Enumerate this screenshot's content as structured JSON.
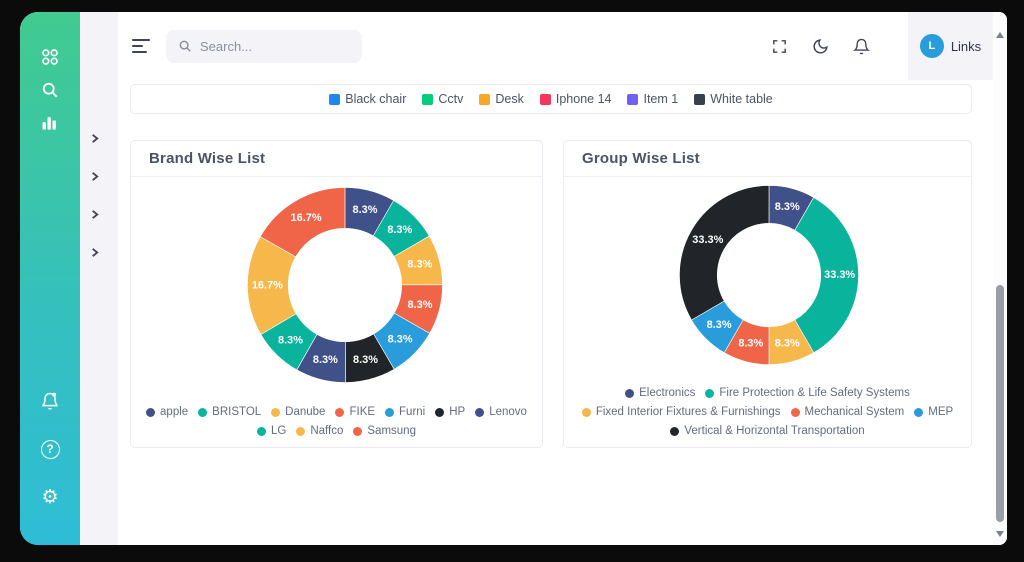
{
  "header": {
    "search_placeholder": "Search...",
    "user_initial": "L",
    "user_label": "Links",
    "icons": [
      "menu",
      "fullscreen",
      "dark-mode",
      "notification-bell"
    ]
  },
  "sidebar": {
    "top_icons": [
      "apps-grid",
      "search",
      "bar-chart"
    ],
    "bottom_icons": [
      "notification-bell",
      "help",
      "settings"
    ],
    "submenu_chevron_count": 4
  },
  "top_legend": {
    "items": [
      {
        "label": "Black chair",
        "color": "#2087f0"
      },
      {
        "label": "Cctv",
        "color": "#00ce7c"
      },
      {
        "label": "Desk",
        "color": "#f9a825"
      },
      {
        "label": "Iphone 14",
        "color": "#f5365c"
      },
      {
        "label": "Item 1",
        "color": "#7460ee"
      },
      {
        "label": "White table",
        "color": "#36414e"
      }
    ]
  },
  "chart_data": [
    {
      "type": "pie",
      "variant": "donut",
      "title": "Brand Wise List",
      "labels": [
        "apple",
        "BRISTOL",
        "Danube",
        "FIKE",
        "Furni",
        "HP",
        "Lenovo",
        "LG",
        "Naffco",
        "Samsung"
      ],
      "values": [
        8.3,
        8.3,
        8.3,
        8.3,
        8.3,
        8.3,
        8.3,
        8.3,
        16.7,
        16.7
      ],
      "slice_labels": [
        "8.3%",
        "8.3%",
        "8.3%",
        "8.3%",
        "8.3%",
        "8.3%",
        "8.3%",
        "8.3%",
        "16.7%",
        "16.7%"
      ],
      "colors": [
        "#405189",
        "#0ab39c",
        "#f7b84b",
        "#f06548",
        "#299cdb",
        "#212529",
        "#405189",
        "#0ab39c",
        "#f7b84b",
        "#f06548"
      ],
      "legend_position": "bottom",
      "start_angle_deg": 0,
      "direction": "clockwise"
    },
    {
      "type": "pie",
      "variant": "donut",
      "title": "Group Wise List",
      "labels": [
        "Electronics",
        "Fire Protection & Life Safety Systems",
        "Fixed Interior Fixtures & Furnishings",
        "Mechanical System",
        "MEP",
        "Vertical & Horizontal Transportation"
      ],
      "values": [
        8.3,
        33.3,
        8.3,
        8.3,
        8.3,
        33.3
      ],
      "slice_labels": [
        "8.3%",
        "33.3%",
        "8.3%",
        "8.3%",
        "8.3%",
        "33.3%"
      ],
      "colors": [
        "#405189",
        "#0ab39c",
        "#f7b84b",
        "#f06548",
        "#299cdb",
        "#212529"
      ],
      "legend_position": "bottom",
      "start_angle_deg": 0,
      "direction": "clockwise"
    }
  ]
}
